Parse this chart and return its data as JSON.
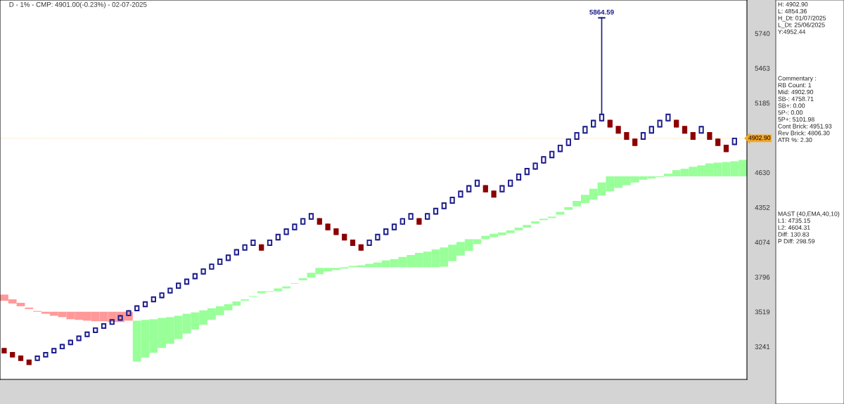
{
  "chart_data": {
    "type": "candlestick",
    "title": "D - 1% - CMP: 4901.00(-0.23%) - 02-07-2025",
    "categories": [
      null,
      null,
      null,
      null,
      null,
      null,
      null,
      null,
      null,
      null,
      null,
      null,
      null,
      null,
      null,
      null,
      null,
      null,
      null,
      null,
      null,
      null,
      null,
      null,
      null,
      null,
      null,
      null,
      null,
      null,
      null,
      null,
      null,
      null,
      null,
      null,
      null,
      null,
      null,
      null,
      null,
      null,
      null,
      null,
      null,
      null,
      null,
      null,
      null,
      null,
      null,
      null,
      null,
      null,
      null,
      null,
      null,
      null,
      null,
      null,
      null,
      null,
      null,
      null,
      null,
      null,
      null,
      null,
      null,
      null,
      null,
      null,
      null,
      null,
      null,
      null,
      null,
      null,
      null,
      null,
      null,
      null,
      null,
      null,
      null,
      null,
      null,
      null,
      null,
      null
    ],
    "ohlc": [
      [
        3224,
        3224,
        3192,
        3192
      ],
      [
        3192,
        3192,
        3160,
        3160
      ],
      [
        3164,
        3164,
        3132,
        3132
      ],
      [
        3132,
        3132,
        3100,
        3100
      ],
      [
        3132,
        3164,
        3132,
        3164
      ],
      [
        3160,
        3192,
        3160,
        3192
      ],
      [
        3192,
        3224,
        3192,
        3224
      ],
      [
        3225,
        3257,
        3225,
        3257
      ],
      [
        3258,
        3290,
        3258,
        3290
      ],
      [
        3290,
        3324,
        3290,
        3324
      ],
      [
        3322,
        3356,
        3322,
        3356
      ],
      [
        3355,
        3389,
        3355,
        3389
      ],
      [
        3388,
        3422,
        3388,
        3422
      ],
      [
        3420,
        3454,
        3420,
        3454
      ],
      [
        3453,
        3487,
        3453,
        3487
      ],
      [
        3490,
        3526,
        3490,
        3526
      ],
      [
        3529,
        3565,
        3529,
        3565
      ],
      [
        3561,
        3597,
        3561,
        3597
      ],
      [
        3600,
        3636,
        3600,
        3636
      ],
      [
        3632,
        3668,
        3632,
        3668
      ],
      [
        3670,
        3706,
        3670,
        3706
      ],
      [
        3708,
        3746,
        3708,
        3746
      ],
      [
        3740,
        3778,
        3740,
        3778
      ],
      [
        3784,
        3822,
        3784,
        3822
      ],
      [
        3822,
        3860,
        3822,
        3860
      ],
      [
        3860,
        3898,
        3860,
        3898
      ],
      [
        3898,
        3938,
        3898,
        3938
      ],
      [
        3930,
        3970,
        3930,
        3970
      ],
      [
        3974,
        4014,
        3974,
        4014
      ],
      [
        4012,
        4052,
        4012,
        4052
      ],
      [
        4050,
        4090,
        4050,
        4090
      ],
      [
        4052,
        4052,
        4012,
        4012
      ],
      [
        4050,
        4090,
        4050,
        4090
      ],
      [
        4093,
        4135,
        4093,
        4135
      ],
      [
        4137,
        4179,
        4137,
        4179
      ],
      [
        4175,
        4217,
        4175,
        4217
      ],
      [
        4219,
        4261,
        4219,
        4261
      ],
      [
        4259,
        4301,
        4259,
        4301
      ],
      [
        4261,
        4261,
        4219,
        4219
      ],
      [
        4217,
        4217,
        4175,
        4175
      ],
      [
        4179,
        4179,
        4137,
        4137
      ],
      [
        4135,
        4135,
        4093,
        4093
      ],
      [
        4090,
        4090,
        4050,
        4050
      ],
      [
        4052,
        4052,
        4012,
        4012
      ],
      [
        4050,
        4090,
        4050,
        4090
      ],
      [
        4093,
        4135,
        4093,
        4135
      ],
      [
        4137,
        4179,
        4137,
        4179
      ],
      [
        4175,
        4217,
        4175,
        4217
      ],
      [
        4219,
        4261,
        4219,
        4261
      ],
      [
        4259,
        4301,
        4259,
        4301
      ],
      [
        4261,
        4261,
        4219,
        4219
      ],
      [
        4259,
        4301,
        4259,
        4301
      ],
      [
        4299,
        4343,
        4299,
        4343
      ],
      [
        4343,
        4387,
        4343,
        4387
      ],
      [
        4387,
        4431,
        4387,
        4431
      ],
      [
        4436,
        4480,
        4436,
        4480
      ],
      [
        4478,
        4524,
        4478,
        4524
      ],
      [
        4522,
        4568,
        4522,
        4568
      ],
      [
        4524,
        4524,
        4478,
        4478
      ],
      [
        4480,
        4480,
        4436,
        4436
      ],
      [
        4478,
        4524,
        4478,
        4524
      ],
      [
        4522,
        4568,
        4522,
        4568
      ],
      [
        4571,
        4617,
        4571,
        4617
      ],
      [
        4615,
        4661,
        4615,
        4661
      ],
      [
        4658,
        4704,
        4658,
        4704
      ],
      [
        4707,
        4755,
        4707,
        4755
      ],
      [
        4750,
        4798,
        4750,
        4798
      ],
      [
        4799,
        4847,
        4799,
        4847
      ],
      [
        4848,
        4896,
        4848,
        4896
      ],
      [
        4897,
        4947,
        4897,
        4947
      ],
      [
        4946,
        4996,
        4946,
        4996
      ],
      [
        4995,
        5045,
        4995,
        5045
      ],
      [
        5044,
        5864.59,
        5044,
        5094
      ],
      [
        5045,
        5045,
        4995,
        4995
      ],
      [
        4996,
        4996,
        4946,
        4946
      ],
      [
        4947,
        4947,
        4897,
        4897
      ],
      [
        4896,
        4896,
        4848,
        4848
      ],
      [
        4897,
        4947,
        4897,
        4947
      ],
      [
        4946,
        4996,
        4946,
        4996
      ],
      [
        4995,
        5045,
        4995,
        5045
      ],
      [
        5044,
        5094,
        5044,
        5094
      ],
      [
        5045,
        5045,
        4995,
        4995
      ],
      [
        4996,
        4996,
        4946,
        4946
      ],
      [
        4947,
        4947,
        4897,
        4897
      ],
      [
        4946,
        4996,
        4946,
        4996
      ],
      [
        4947,
        4947,
        4897,
        4897
      ],
      [
        4896,
        4896,
        4848,
        4848
      ],
      [
        4847,
        4847,
        4799,
        4799
      ],
      [
        4854.36,
        4902.9,
        4854.36,
        4902.9
      ],
      null
    ],
    "colors": [
      "#8b0000",
      "#8b0000",
      "#8b0000",
      "#8b0000",
      "#1c1c8c",
      "#1c1c8c",
      "#1c1c8c",
      "#1c1c8c",
      "#1c1c8c",
      "#1c1c8c",
      "#1c1c8c",
      "#1c1c8c",
      "#1c1c8c",
      "#1c1c8c",
      "#1c1c8c",
      "#1c1c8c",
      "#1c1c8c",
      "#1c1c8c",
      "#1c1c8c",
      "#1c1c8c",
      "#1c1c8c",
      "#1c1c8c",
      "#1c1c8c",
      "#1c1c8c",
      "#1c1c8c",
      "#1c1c8c",
      "#1c1c8c",
      "#1c1c8c",
      "#1c1c8c",
      "#1c1c8c",
      "#1c1c8c",
      "#8b0000",
      "#1c1c8c",
      "#1c1c8c",
      "#1c1c8c",
      "#1c1c8c",
      "#1c1c8c",
      "#1c1c8c",
      "#8b0000",
      "#8b0000",
      "#8b0000",
      "#8b0000",
      "#8b0000",
      "#8b0000",
      "#1c1c8c",
      "#1c1c8c",
      "#1c1c8c",
      "#1c1c8c",
      "#1c1c8c",
      "#1c1c8c",
      "#8b0000",
      "#1c1c8c",
      "#1c1c8c",
      "#1c1c8c",
      "#1c1c8c",
      "#1c1c8c",
      "#1c1c8c",
      "#1c1c8c",
      "#8b0000",
      "#8b0000",
      "#1c1c8c",
      "#1c1c8c",
      "#1c1c8c",
      "#1c1c8c",
      "#1c1c8c",
      "#1c1c8c",
      "#1c1c8c",
      "#1c1c8c",
      "#1c1c8c",
      "#1c1c8c",
      "#1c1c8c",
      "#1c1c8c",
      "#1c1c8c",
      "#8b0000",
      "#8b0000",
      "#8b0000",
      "#8b0000",
      "#1c1c8c",
      "#1c1c8c",
      "#1c1c8c",
      "#1c1c8c",
      "#8b0000",
      "#8b0000",
      "#8b0000",
      "#1c1c8c",
      "#8b0000",
      "#8b0000",
      "#8b0000",
      "#1c1c8c",
      null
    ],
    "series": [
      {
        "type": "bar",
        "color": "#ff9999",
        "base": [
          3607,
          3585,
          3563,
          3541,
          3519,
          3503,
          3487,
          3476,
          3459,
          3454,
          3448,
          3443,
          3443,
          3437,
          3437,
          3448,
          null,
          null,
          null,
          null,
          null,
          null,
          null,
          null,
          null,
          null,
          null,
          null,
          null,
          null,
          null,
          null,
          null,
          null,
          null,
          null,
          null,
          null,
          null,
          null,
          null,
          null,
          null,
          null,
          null,
          null,
          null,
          null,
          null,
          null,
          null,
          null,
          null,
          null,
          null,
          null,
          null,
          null,
          null,
          null,
          null,
          null,
          null,
          null,
          null,
          null,
          null,
          null,
          null,
          null,
          null,
          null,
          null,
          null,
          null,
          null,
          null,
          null,
          null,
          null,
          null,
          null,
          null,
          null,
          null,
          null,
          null,
          null,
          null,
          null
        ],
        "values": [
          49,
          33,
          27,
          11,
          6,
          16,
          32,
          43,
          60,
          65,
          71,
          76,
          76,
          82,
          82,
          71,
          null,
          null,
          null,
          null,
          null,
          null,
          null,
          null,
          null,
          null,
          null,
          null,
          null,
          null,
          null,
          null,
          null,
          null,
          null,
          null,
          null,
          null,
          null,
          null,
          null,
          null,
          null,
          null,
          null,
          null,
          null,
          null,
          null,
          null,
          null,
          null,
          null,
          null,
          null,
          null,
          null,
          null,
          null,
          null,
          null,
          null,
          null,
          null,
          null,
          null,
          null,
          null,
          null,
          null,
          null,
          null,
          null,
          null,
          null,
          null,
          null,
          null,
          null,
          null,
          null,
          null,
          null,
          null,
          null,
          null,
          null,
          null,
          null,
          null
        ]
      },
      {
        "type": "bar",
        "color": "#99ff99",
        "base": [
          null,
          null,
          null,
          null,
          null,
          null,
          null,
          null,
          null,
          null,
          null,
          null,
          null,
          null,
          null,
          null,
          3121,
          3154,
          3192,
          3230,
          3263,
          3301,
          3345,
          3377,
          3416,
          3454,
          3492,
          3530,
          3568,
          3607,
          3639,
          3667,
          3678,
          3683,
          3705,
          3743,
          3770,
          3792,
          3819,
          3841,
          3852,
          3863,
          3874,
          3874,
          3874,
          3874,
          3874,
          3874,
          3874,
          3874,
          3874,
          3874,
          3874,
          3879,
          3923,
          3967,
          4005,
          4059,
          4098,
          4114,
          4130,
          4147,
          4169,
          4190,
          4223,
          4250,
          4267,
          4294,
          4332,
          4360,
          4387,
          4414,
          4447,
          4480,
          4507,
          4529,
          4551,
          4572,
          4583,
          4594,
          4600,
          4600,
          4600,
          4600,
          4600,
          4600,
          4600,
          4600,
          4600,
          4600
        ],
        "values": [
          null,
          null,
          null,
          null,
          null,
          null,
          null,
          null,
          null,
          null,
          null,
          null,
          null,
          null,
          null,
          null,
          327,
          300,
          267,
          240,
          213,
          186,
          158,
          137,
          114,
          93,
          71,
          49,
          33,
          11,
          6,
          16,
          5,
          22,
          16,
          5,
          17,
          38,
          50,
          28,
          17,
          11,
          11,
          16,
          27,
          38,
          55,
          65,
          82,
          98,
          115,
          125,
          142,
          153,
          131,
          109,
          93,
          39,
          27,
          27,
          22,
          22,
          21,
          22,
          17,
          11,
          11,
          22,
          22,
          43,
          65,
          87,
          104,
          120,
          93,
          71,
          49,
          28,
          17,
          6,
          21,
          49,
          60,
          76,
          87,
          103,
          109,
          114,
          120,
          131
        ]
      }
    ],
    "ylim": [
      2979,
      6007
    ],
    "yticks": [
      3241,
      3519,
      3796,
      4074,
      4352,
      4630,
      5185,
      5463,
      5740
    ],
    "ref_lines": [
      {
        "axis": "y",
        "value": 4902.9,
        "label": "4902.90",
        "color": "#f5a623",
        "line_style": "dotted"
      }
    ],
    "annotations": [
      {
        "text": "5864.59",
        "y": 5864.59
      },
      "H: 4902.90\nL: 4854.36\nH_Dt: 01/07/2025\nL_Dt: 25/06/2025\nY:4952.44",
      "Commentary :\nRB Count: 1\nMid: 4902.90\nSB-: 4758.71\nSB+: 0.00\n5P-: 0.00\n5P+: 5101.98\nCont Brick: 4951.93\nRev Brick: 4806.30\nATR %: 2.30",
      "MAST (40,EMA,40,10)\nL1: 4735.15\nL2: 4604.31\nDiff: 130.83\nP Diff: 298.59"
    ],
    "grid": false
  }
}
